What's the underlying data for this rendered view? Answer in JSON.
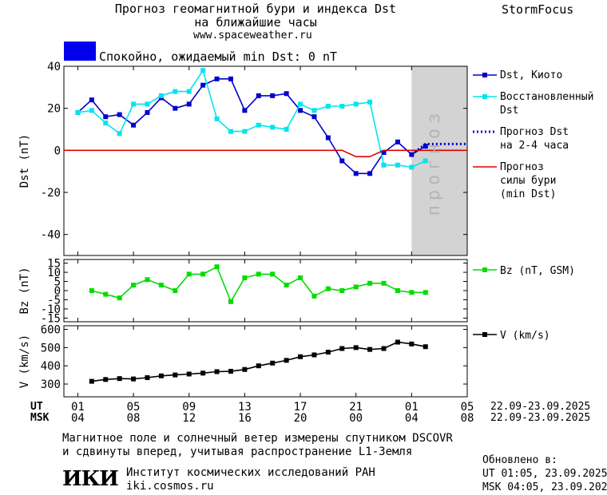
{
  "header": {
    "title_line1": "Прогноз геомагнитной бури и индекса Dst",
    "title_line2": "на ближайшие часы",
    "url": "www.spaceweather.ru",
    "brand": "StormFocus",
    "status_text": "Спокойно, ожидаемый min Dst: 0 nT",
    "status_color": "#0000ee"
  },
  "legend": {
    "dst_kyoto": "Dst, Киото",
    "dst_restored_1": "Восстановленный",
    "dst_restored_2": "Dst",
    "dst_forecast_1": "Прогноз Dst",
    "dst_forecast_2": "на 2-4 часа",
    "storm_forecast_1": "Прогноз",
    "storm_forecast_2": "силы бури",
    "storm_forecast_3": "(min Dst)",
    "bz": "Bz (nT, GSM)",
    "v": "V (km/s)"
  },
  "forecast_band_label": "прогноз",
  "axes": {
    "x_ut_label": "UT",
    "x_msk_label": "MSK",
    "ut_ticks": [
      "01",
      "05",
      "09",
      "13",
      "17",
      "21",
      "01",
      "05"
    ],
    "msk_ticks": [
      "04",
      "08",
      "12",
      "16",
      "20",
      "00",
      "04",
      "08"
    ],
    "ut_range": "22.09-23.09.2025",
    "msk_range": "22.09-23.09.2025"
  },
  "footer": {
    "note_line1": "Магнитное поле и солнечный ветер измерены спутником DSCOVR",
    "note_line2": "и сдвинуты вперед, учитывая распространение L1-Земля",
    "logo_text": "ИКИ",
    "institute": "Институт космических исследований РАН",
    "site": "iki.cosmos.ru",
    "updated_label": "Обновлено в:",
    "updated_ut": "UT  01:05, 23.09.2025",
    "updated_msk": "MSK 04:05, 23.09.2025"
  },
  "chart_data": [
    {
      "type": "line",
      "name": "Dst",
      "ylabel": "Dst (nT)",
      "ylim": [
        -50,
        40
      ],
      "yticks": [
        40,
        20,
        0,
        -20,
        -40
      ],
      "x_hours_ut_ticks": [
        1,
        5,
        9,
        13,
        17,
        21,
        25,
        29
      ],
      "forecast_band_x": [
        25,
        29
      ],
      "series": [
        {
          "name": "Dst, Киото",
          "color": "#0000cc",
          "marker": "square",
          "x": [
            1,
            2,
            3,
            4,
            5,
            6,
            7,
            8,
            9,
            10,
            11,
            12,
            13,
            14,
            15,
            16,
            17,
            18,
            19,
            20,
            21,
            22,
            23,
            24,
            25,
            26
          ],
          "y": [
            18,
            24,
            16,
            17,
            12,
            18,
            25,
            20,
            22,
            31,
            34,
            34,
            19,
            26,
            26,
            27,
            19,
            16,
            6,
            -5,
            -11,
            -11,
            -1,
            4,
            -2,
            2
          ]
        },
        {
          "name": "Восстановленный Dst",
          "color": "#00e5ee",
          "marker": "square",
          "x": [
            1,
            2,
            3,
            4,
            5,
            6,
            7,
            8,
            9,
            10,
            11,
            12,
            13,
            14,
            15,
            16,
            17,
            18,
            19,
            20,
            21,
            22,
            23,
            24,
            25,
            26
          ],
          "y": [
            18,
            19,
            13,
            8,
            22,
            22,
            26,
            28,
            28,
            38,
            15,
            9,
            9,
            12,
            11,
            10,
            22,
            19,
            21,
            21,
            22,
            23,
            -7,
            -7,
            -8,
            -5
          ]
        },
        {
          "name": "Прогноз Dst на 2-4 часа",
          "color": "#0000cc",
          "style": "dotted",
          "x": [
            25,
            26,
            27,
            28,
            29
          ],
          "y": [
            -2,
            3,
            3,
            3,
            3
          ]
        },
        {
          "name": "Прогноз силы бури (min Dst)",
          "color": "#dd0000",
          "x": [
            0,
            20,
            21,
            22,
            23,
            29
          ],
          "y": [
            0,
            0,
            -3,
            -3,
            0,
            0
          ]
        }
      ]
    },
    {
      "type": "line",
      "name": "Bz",
      "ylabel": "Bz (nT)",
      "ylim": [
        -17,
        17
      ],
      "yticks": [
        15,
        10,
        5,
        0,
        -5,
        -10,
        -15
      ],
      "series": [
        {
          "name": "Bz (nT, GSM)",
          "color": "#00dd00",
          "marker": "square",
          "x": [
            2,
            3,
            4,
            5,
            6,
            7,
            8,
            9,
            10,
            11,
            12,
            13,
            14,
            15,
            16,
            17,
            18,
            19,
            20,
            21,
            22,
            23,
            24,
            25,
            26
          ],
          "y": [
            0,
            -2,
            -4,
            3,
            6,
            3,
            0,
            9,
            9,
            13,
            -6,
            7,
            9,
            9,
            3,
            7,
            -3,
            1,
            0,
            2,
            4,
            4,
            0,
            -1,
            -1
          ]
        }
      ]
    },
    {
      "type": "line",
      "name": "V",
      "ylabel": "V (km/s)",
      "ylim": [
        230,
        620
      ],
      "yticks": [
        600,
        500,
        400,
        300
      ],
      "series": [
        {
          "name": "V (km/s)",
          "color": "#000000",
          "marker": "square",
          "x": [
            2,
            3,
            4,
            5,
            6,
            7,
            8,
            9,
            10,
            11,
            12,
            13,
            14,
            15,
            16,
            17,
            18,
            19,
            20,
            21,
            22,
            23,
            24,
            25,
            26
          ],
          "y": [
            315,
            325,
            330,
            328,
            335,
            345,
            350,
            355,
            360,
            368,
            370,
            380,
            400,
            415,
            430,
            450,
            460,
            475,
            495,
            500,
            490,
            495,
            530,
            520,
            505
          ]
        }
      ]
    }
  ]
}
